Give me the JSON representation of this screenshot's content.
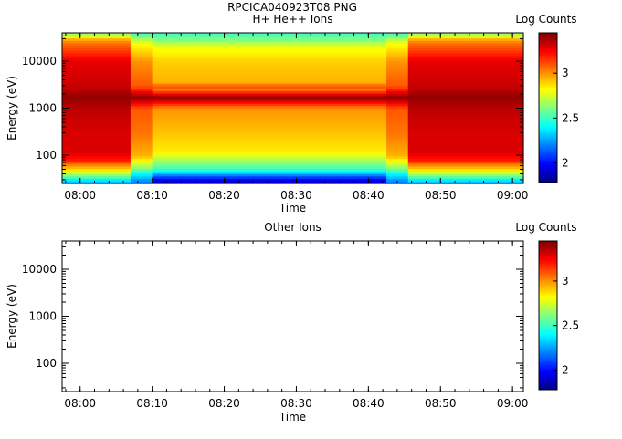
{
  "figure_title": "RPCICA040923T08.PNG",
  "chart_data": [
    {
      "type": "heatmap",
      "title": "H+ He++ Ions",
      "xlabel": "Time",
      "ylabel": "Energy (eV)",
      "x_ticks": [
        "08:00",
        "08:10",
        "08:20",
        "08:30",
        "08:40",
        "08:50",
        "09:00"
      ],
      "x_range": [
        "07:57:30",
        "09:01:30"
      ],
      "y_scale": "log",
      "y_ticks": [
        100,
        1000,
        10000
      ],
      "ylim": [
        25,
        40000
      ],
      "colorbar": {
        "label": "Log Counts",
        "range": [
          1.78,
          3.45
        ],
        "ticks": [
          2,
          2.5,
          3
        ],
        "colormap": "jet"
      },
      "time_segments": [
        {
          "start": "07:57:30",
          "end": "08:07:00",
          "regime": "hot-broad"
        },
        {
          "start": "08:07:00",
          "end": "08:10:00",
          "regime": "transition"
        },
        {
          "start": "08:10:00",
          "end": "08:42:30",
          "regime": "cool-narrow"
        },
        {
          "start": "08:42:30",
          "end": "08:45:30",
          "regime": "transition"
        },
        {
          "start": "08:45:30",
          "end": "09:01:30",
          "regime": "hot-broad"
        }
      ],
      "energy_profiles": {
        "hot-broad": [
          {
            "energy": 28,
            "value": 2.3
          },
          {
            "energy": 35,
            "value": 2.55
          },
          {
            "energy": 45,
            "value": 2.8
          },
          {
            "energy": 60,
            "value": 3.0
          },
          {
            "energy": 80,
            "value": 3.2
          },
          {
            "energy": 120,
            "value": 3.3
          },
          {
            "energy": 300,
            "value": 3.3
          },
          {
            "energy": 1000,
            "value": 3.35
          },
          {
            "energy": 1700,
            "value": 3.42
          },
          {
            "energy": 3000,
            "value": 3.33
          },
          {
            "energy": 10000,
            "value": 3.28
          },
          {
            "energy": 25000,
            "value": 3.05
          },
          {
            "energy": 32000,
            "value": 2.9
          },
          {
            "energy": 40000,
            "value": 2.6
          }
        ],
        "transition": [
          {
            "energy": 28,
            "value": 2.2
          },
          {
            "energy": 40,
            "value": 2.4
          },
          {
            "energy": 60,
            "value": 2.7
          },
          {
            "energy": 100,
            "value": 2.95
          },
          {
            "energy": 300,
            "value": 3.05
          },
          {
            "energy": 1000,
            "value": 3.1
          },
          {
            "energy": 1700,
            "value": 3.42
          },
          {
            "energy": 3000,
            "value": 3.1
          },
          {
            "energy": 10000,
            "value": 3.0
          },
          {
            "energy": 25000,
            "value": 2.8
          },
          {
            "energy": 40000,
            "value": 2.5
          }
        ],
        "cool-narrow": [
          {
            "energy": 28,
            "value": 1.9
          },
          {
            "energy": 35,
            "value": 2.1
          },
          {
            "energy": 45,
            "value": 2.4
          },
          {
            "energy": 60,
            "value": 2.58
          },
          {
            "energy": 80,
            "value": 2.68
          },
          {
            "energy": 120,
            "value": 2.85
          },
          {
            "energy": 300,
            "value": 2.92
          },
          {
            "energy": 1000,
            "value": 3.0
          },
          {
            "energy": 1700,
            "value": 3.42
          },
          {
            "energy": 2500,
            "value": 3.05
          },
          {
            "energy": 3000,
            "value": 3.12
          },
          {
            "energy": 3500,
            "value": 2.95
          },
          {
            "energy": 10000,
            "value": 2.9
          },
          {
            "energy": 20000,
            "value": 2.8
          },
          {
            "energy": 30000,
            "value": 2.6
          },
          {
            "energy": 40000,
            "value": 2.5
          }
        ]
      }
    },
    {
      "type": "heatmap",
      "title": "Other Ions",
      "xlabel": "Time",
      "ylabel": "Energy (eV)",
      "x_ticks": [
        "08:00",
        "08:10",
        "08:20",
        "08:30",
        "08:40",
        "08:50",
        "09:00"
      ],
      "x_range": [
        "07:57:30",
        "09:01:30"
      ],
      "y_scale": "log",
      "y_ticks": [
        100,
        1000,
        10000
      ],
      "ylim": [
        25,
        40000
      ],
      "colorbar": {
        "label": "Log Counts",
        "range": [
          1.78,
          3.45
        ],
        "ticks": [
          2,
          2.5,
          3
        ],
        "colormap": "jet"
      },
      "time_segments": [],
      "energy_profiles": {}
    }
  ]
}
